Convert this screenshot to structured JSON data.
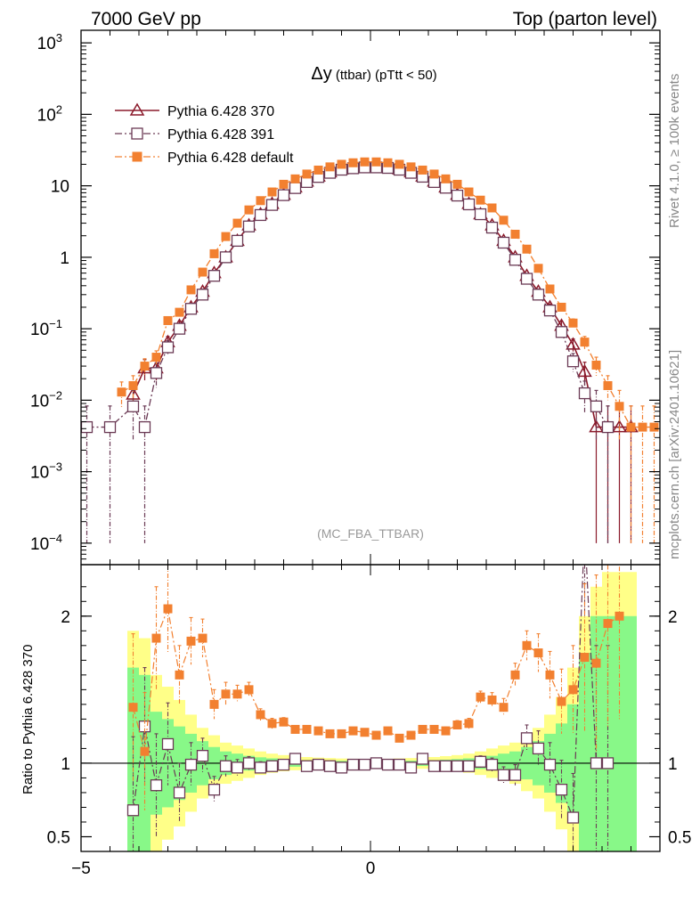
{
  "header": {
    "left": "7000 GeV pp",
    "right": "Top (parton level)"
  },
  "plot_title": {
    "main": "Δy",
    "sub": " (ttbar) (pTtt < 50)"
  },
  "side_labels": {
    "rivet": "Rivet 4.1.0, ≥ 100k events",
    "mcplots": "mcplots.cern.ch [arXiv:2401.10621]"
  },
  "analysis_tag": "(MC_FBA_TTBAR)",
  "ratio_ylabel": "Ratio to Pythia 6.428 370",
  "colors": {
    "s370": "#8b1a2b",
    "s391": "#6b3a55",
    "sdefault": "#f28030",
    "band_yellow": "#ffff88",
    "band_green": "#88f888"
  },
  "chart_data": [
    {
      "type": "line",
      "name": "main",
      "yscale": "log",
      "xlim": [
        -5,
        5
      ],
      "ylim": [
        5e-05,
        1500
      ],
      "yticks": [
        {
          "v": 0.0001,
          "base": "10",
          "exp": "−4"
        },
        {
          "v": 0.001,
          "base": "10",
          "exp": "−3"
        },
        {
          "v": 0.01,
          "base": "10",
          "exp": "−2"
        },
        {
          "v": 0.1,
          "base": "10",
          "exp": "−1"
        },
        {
          "v": 1,
          "base": "1",
          "exp": ""
        },
        {
          "v": 10,
          "base": "10",
          "exp": ""
        },
        {
          "v": 100,
          "base": "10",
          "exp": "2"
        },
        {
          "v": 1000,
          "base": "10",
          "exp": "3"
        }
      ],
      "series": [
        {
          "name": "Pythia 6.428 370",
          "marker": "open-triangle",
          "line": "solid",
          "x": [
            -4.1,
            -3.9,
            -3.7,
            -3.5,
            -3.3,
            -3.1,
            -2.9,
            -2.7,
            -2.5,
            -2.3,
            -2.1,
            -1.9,
            -1.7,
            -1.5,
            -1.3,
            -1.1,
            -0.9,
            -0.7,
            -0.5,
            -0.3,
            -0.1,
            0.1,
            0.3,
            0.5,
            0.7,
            0.9,
            1.1,
            1.3,
            1.5,
            1.7,
            1.9,
            2.1,
            2.3,
            2.5,
            2.7,
            2.9,
            3.1,
            3.3,
            3.5,
            3.7,
            3.9,
            4.1,
            4.3,
            4.5
          ],
          "values": [
            0.012,
            0.028,
            0.028,
            0.065,
            0.11,
            0.2,
            0.33,
            0.6,
            1.0,
            1.7,
            2.8,
            4.0,
            5.6,
            7.5,
            9.5,
            11.5,
            13.5,
            15.5,
            17.0,
            17.8,
            18.2,
            18.2,
            17.8,
            17.0,
            15.5,
            13.5,
            11.5,
            9.5,
            7.5,
            5.6,
            4.0,
            2.8,
            1.7,
            1.0,
            0.55,
            0.33,
            0.2,
            0.11,
            0.06,
            0.025,
            0.0042,
            0.0042,
            0.0042,
            0.0042
          ],
          "errors": [
            0.005,
            0.009,
            0.009,
            0.013,
            0.017,
            0.022,
            0.029,
            0.04,
            0.05,
            0.065,
            0.08,
            0.1,
            0.12,
            0.14,
            0.15,
            0.17,
            0.18,
            0.2,
            0.2,
            0.2,
            0.21,
            0.21,
            0.2,
            0.2,
            0.2,
            0.18,
            0.17,
            0.15,
            0.14,
            0.12,
            0.1,
            0.08,
            0.065,
            0.05,
            0.036,
            0.029,
            0.022,
            0.017,
            0.012,
            0.009,
            0.0041,
            0.0041,
            0.0041,
            0.0041
          ]
        },
        {
          "name": "Pythia 6.428 391",
          "marker": "open-square",
          "line": "dashdot",
          "x": [
            -4.9,
            -4.5,
            -4.1,
            -3.9,
            -3.7,
            -3.5,
            -3.3,
            -3.1,
            -2.9,
            -2.7,
            -2.5,
            -2.3,
            -2.1,
            -1.9,
            -1.7,
            -1.5,
            -1.3,
            -1.1,
            -0.9,
            -0.7,
            -0.5,
            -0.3,
            -0.1,
            0.1,
            0.3,
            0.5,
            0.7,
            0.9,
            1.1,
            1.3,
            1.5,
            1.7,
            1.9,
            2.1,
            2.3,
            2.5,
            2.7,
            2.9,
            3.1,
            3.3,
            3.5,
            3.7,
            3.9,
            4.1
          ],
          "values": [
            0.0042,
            0.0042,
            0.0082,
            0.0042,
            0.024,
            0.055,
            0.1,
            0.19,
            0.3,
            0.55,
            1.0,
            1.7,
            2.7,
            3.9,
            5.4,
            7.4,
            9.3,
            11.3,
            13.3,
            15.2,
            16.8,
            17.6,
            18.1,
            18.1,
            17.8,
            16.8,
            15.2,
            13.4,
            11.3,
            9.4,
            7.3,
            5.5,
            4.0,
            2.6,
            1.6,
            0.92,
            0.5,
            0.3,
            0.18,
            0.09,
            0.035,
            0.0125,
            0.0082,
            0.0042
          ],
          "errors": [
            0.0041,
            0.0041,
            0.0055,
            0.0041,
            0.009,
            0.013,
            0.017,
            0.022,
            0.028,
            0.038,
            0.05,
            0.065,
            0.08,
            0.1,
            0.12,
            0.14,
            0.15,
            0.17,
            0.18,
            0.2,
            0.2,
            0.2,
            0.21,
            0.21,
            0.2,
            0.2,
            0.2,
            0.18,
            0.17,
            0.15,
            0.14,
            0.12,
            0.1,
            0.08,
            0.063,
            0.048,
            0.035,
            0.028,
            0.021,
            0.015,
            0.01,
            0.006,
            0.0055,
            0.0041
          ]
        },
        {
          "name": "Pythia 6.428 default",
          "marker": "filled-square",
          "line": "dashdot",
          "x": [
            -4.3,
            -4.1,
            -3.9,
            -3.7,
            -3.5,
            -3.3,
            -3.1,
            -2.9,
            -2.7,
            -2.5,
            -2.3,
            -2.1,
            -1.9,
            -1.7,
            -1.5,
            -1.3,
            -1.1,
            -0.9,
            -0.7,
            -0.5,
            -0.3,
            -0.1,
            0.1,
            0.3,
            0.5,
            0.7,
            0.9,
            1.1,
            1.3,
            1.5,
            1.7,
            1.9,
            2.1,
            2.3,
            2.5,
            2.7,
            2.9,
            3.1,
            3.3,
            3.5,
            3.7,
            3.9,
            4.1,
            4.3,
            4.5,
            4.7,
            4.9
          ],
          "values": [
            0.013,
            0.016,
            0.03,
            0.04,
            0.13,
            0.17,
            0.35,
            0.62,
            1.12,
            1.95,
            3.0,
            4.6,
            6.2,
            8.2,
            10.5,
            12.5,
            14.6,
            16.6,
            18.4,
            20.0,
            21.0,
            21.6,
            21.6,
            21.0,
            20.0,
            18.4,
            16.6,
            14.6,
            12.5,
            10.5,
            8.2,
            6.3,
            4.9,
            3.3,
            2.1,
            1.3,
            0.7,
            0.36,
            0.2,
            0.12,
            0.065,
            0.031,
            0.016,
            0.0082,
            0.0042,
            0.0042,
            0.0042
          ],
          "errors": [
            0.005,
            0.006,
            0.008,
            0.009,
            0.017,
            0.02,
            0.028,
            0.04,
            0.055,
            0.07,
            0.09,
            0.11,
            0.13,
            0.15,
            0.16,
            0.18,
            0.19,
            0.21,
            0.22,
            0.23,
            0.23,
            0.24,
            0.24,
            0.23,
            0.23,
            0.22,
            0.21,
            0.19,
            0.18,
            0.16,
            0.15,
            0.13,
            0.11,
            0.09,
            0.072,
            0.057,
            0.042,
            0.029,
            0.022,
            0.017,
            0.013,
            0.009,
            0.006,
            0.0055,
            0.0041,
            0.0041,
            0.0041
          ]
        }
      ]
    },
    {
      "type": "line",
      "name": "ratio",
      "ylabel": "Ratio to Pythia 6.428 370",
      "xlim": [
        -5,
        5
      ],
      "ylim": [
        0.4,
        2.35
      ],
      "yticks": [
        {
          "v": 0.5,
          "label": "0.5"
        },
        {
          "v": 1,
          "label": "1"
        },
        {
          "v": 2,
          "label": "2"
        }
      ],
      "xticks": [
        {
          "v": -5,
          "label": "−5"
        },
        {
          "v": 0,
          "label": "0"
        }
      ],
      "bands": {
        "x_edges": [
          -4.2,
          -4.0,
          -3.8,
          -3.6,
          -3.4,
          -3.2,
          -3.0,
          -2.8,
          -2.6,
          -2.4,
          -2.2,
          -2.0,
          -1.8,
          -1.6,
          -1.4,
          -1.2,
          -1.0,
          -0.8,
          -0.6,
          -0.4,
          -0.2,
          0.0,
          0.2,
          0.4,
          0.6,
          0.8,
          1.0,
          1.2,
          1.4,
          1.6,
          1.8,
          2.0,
          2.2,
          2.4,
          2.6,
          2.8,
          3.0,
          3.2,
          3.4,
          3.6,
          3.8,
          4.0,
          4.2,
          4.4,
          4.6
        ],
        "yellow": [
          0.9,
          0.85,
          0.6,
          0.52,
          0.43,
          0.33,
          0.24,
          0.19,
          0.14,
          0.12,
          0.1,
          0.08,
          0.065,
          0.055,
          0.048,
          0.042,
          0.038,
          0.035,
          0.032,
          0.03,
          0.028,
          0.028,
          0.03,
          0.032,
          0.035,
          0.038,
          0.042,
          0.048,
          0.055,
          0.065,
          0.08,
          0.1,
          0.12,
          0.14,
          0.19,
          0.24,
          0.33,
          0.45,
          0.65,
          1.0,
          1.2,
          1.3,
          1.3,
          1.3
        ],
        "green": [
          0.65,
          0.6,
          0.35,
          0.3,
          0.25,
          0.2,
          0.15,
          0.11,
          0.08,
          0.065,
          0.05,
          0.04,
          0.033,
          0.028,
          0.024,
          0.021,
          0.019,
          0.017,
          0.016,
          0.015,
          0.014,
          0.014,
          0.015,
          0.016,
          0.017,
          0.019,
          0.021,
          0.024,
          0.028,
          0.033,
          0.04,
          0.05,
          0.065,
          0.08,
          0.11,
          0.15,
          0.2,
          0.27,
          0.4,
          0.75,
          1.0,
          1.0,
          1.0,
          1.0
        ]
      },
      "series": [
        {
          "name": "Pythia 6.428 391",
          "marker": "open-square",
          "x": [
            -4.1,
            -3.9,
            -3.7,
            -3.5,
            -3.3,
            -3.1,
            -2.9,
            -2.7,
            -2.5,
            -2.3,
            -2.1,
            -1.9,
            -1.7,
            -1.5,
            -1.3,
            -1.1,
            -0.9,
            -0.7,
            -0.5,
            -0.3,
            -0.1,
            0.1,
            0.3,
            0.5,
            0.7,
            0.9,
            1.1,
            1.3,
            1.5,
            1.7,
            1.9,
            2.1,
            2.3,
            2.5,
            2.7,
            2.9,
            3.1,
            3.3,
            3.5,
            3.7,
            3.9,
            4.1
          ],
          "values": [
            0.68,
            1.25,
            0.85,
            1.13,
            0.8,
            0.99,
            1.05,
            0.82,
            0.98,
            0.97,
            1.0,
            0.97,
            0.98,
            0.99,
            1.03,
            0.98,
            0.99,
            0.98,
            0.97,
            0.99,
            0.99,
            1.0,
            0.99,
            0.99,
            0.97,
            1.03,
            0.98,
            0.98,
            0.98,
            0.98,
            1.01,
            0.99,
            0.92,
            0.92,
            1.17,
            1.1,
            0.99,
            0.82,
            0.63,
            2.6,
            1.0,
            1.0
          ],
          "errors": [
            0.5,
            0.4,
            0.35,
            0.28,
            0.2,
            0.15,
            0.12,
            0.09,
            0.07,
            0.055,
            0.045,
            0.04,
            0.033,
            0.028,
            0.024,
            0.022,
            0.02,
            0.018,
            0.017,
            0.016,
            0.016,
            0.016,
            0.016,
            0.017,
            0.018,
            0.02,
            0.022,
            0.024,
            0.028,
            0.033,
            0.04,
            0.045,
            0.055,
            0.07,
            0.09,
            0.12,
            0.15,
            0.2,
            0.3,
            0.6,
            0.8,
            0.8
          ]
        },
        {
          "name": "Pythia 6.428 default",
          "marker": "filled-square",
          "x": [
            -4.1,
            -3.9,
            -3.7,
            -3.5,
            -3.3,
            -3.1,
            -2.9,
            -2.7,
            -2.5,
            -2.3,
            -2.1,
            -1.9,
            -1.7,
            -1.5,
            -1.3,
            -1.1,
            -0.9,
            -0.7,
            -0.5,
            -0.3,
            -0.1,
            0.1,
            0.3,
            0.5,
            0.7,
            0.9,
            1.1,
            1.3,
            1.5,
            1.7,
            1.9,
            2.1,
            2.3,
            2.5,
            2.7,
            2.9,
            3.1,
            3.3,
            3.5,
            3.7,
            3.9,
            4.1,
            4.3
          ],
          "values": [
            1.38,
            1.08,
            1.85,
            2.05,
            1.6,
            1.83,
            1.85,
            1.4,
            1.47,
            1.47,
            1.5,
            1.33,
            1.27,
            1.28,
            1.23,
            1.23,
            1.22,
            1.2,
            1.2,
            1.22,
            1.21,
            1.19,
            1.22,
            1.17,
            1.19,
            1.23,
            1.23,
            1.22,
            1.26,
            1.27,
            1.45,
            1.43,
            1.38,
            1.6,
            1.8,
            1.75,
            1.6,
            1.42,
            1.5,
            1.72,
            1.68,
            1.95,
            2.0
          ],
          "errors": [
            0.5,
            0.4,
            0.35,
            0.3,
            0.2,
            0.16,
            0.13,
            0.1,
            0.08,
            0.06,
            0.05,
            0.04,
            0.035,
            0.03,
            0.026,
            0.024,
            0.022,
            0.02,
            0.02,
            0.02,
            0.02,
            0.02,
            0.02,
            0.02,
            0.02,
            0.022,
            0.024,
            0.026,
            0.03,
            0.035,
            0.04,
            0.05,
            0.06,
            0.08,
            0.1,
            0.13,
            0.16,
            0.22,
            0.3,
            0.5,
            0.6,
            0.7,
            0.7
          ]
        }
      ]
    }
  ]
}
